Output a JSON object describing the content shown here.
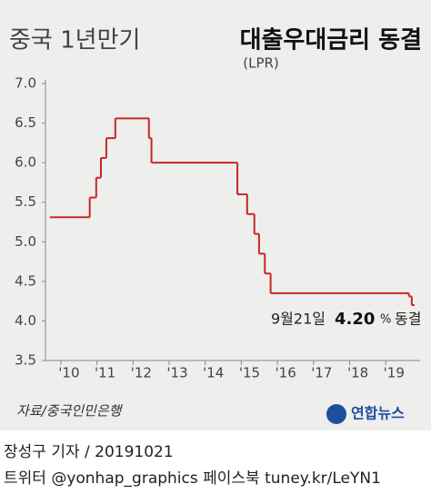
{
  "chart_data": {
    "type": "step",
    "title_light": "중국 1년만기",
    "title_bold": "대출우대금리 동결",
    "subtitle": "(LPR)",
    "x": [
      2009.7,
      2010.8,
      2010.98,
      2011.11,
      2011.26,
      2011.51,
      2012.44,
      2012.51,
      2014.89,
      2015.16,
      2015.36,
      2015.49,
      2015.65,
      2015.81,
      2019.64,
      2019.72
    ],
    "values": [
      5.31,
      5.56,
      5.81,
      6.06,
      6.31,
      6.56,
      6.31,
      6.0,
      5.6,
      5.35,
      5.1,
      4.85,
      4.6,
      4.35,
      4.31,
      4.2
    ],
    "color": "#c62828",
    "xlim": [
      2009.7,
      2019.95
    ],
    "xticks": [
      {
        "value": 2010,
        "label": "'10"
      },
      {
        "value": 2011,
        "label": "'11"
      },
      {
        "value": 2012,
        "label": "'12"
      },
      {
        "value": 2013,
        "label": "'13"
      },
      {
        "value": 2014,
        "label": "'14"
      },
      {
        "value": 2015,
        "label": "'15"
      },
      {
        "value": 2016,
        "label": "'16"
      },
      {
        "value": 2017,
        "label": "'17"
      },
      {
        "value": 2018,
        "label": "'18"
      },
      {
        "value": 2019,
        "label": "'19"
      }
    ],
    "ylim": [
      3.5,
      7.0
    ],
    "yticks": [
      {
        "value": 3.5,
        "label": "3.5"
      },
      {
        "value": 4,
        "label": "4.0"
      },
      4.5,
      {
        "value": 5,
        "label": "5.0"
      },
      5.5,
      {
        "value": 6,
        "label": "6.0"
      },
      6.5,
      {
        "value": 7,
        "label": "7.0"
      }
    ],
    "annotation": {
      "date": "9월21일",
      "value": "4.20",
      "unit": "%",
      "text": "동결"
    },
    "source": "자료/중국인민은행",
    "logo": "연합뉴스"
  },
  "footer": {
    "byline": "장성구 기자  /  20191021",
    "social": "트위터 @yonhap_graphics  페이스북 tuney.kr/LeYN1"
  }
}
